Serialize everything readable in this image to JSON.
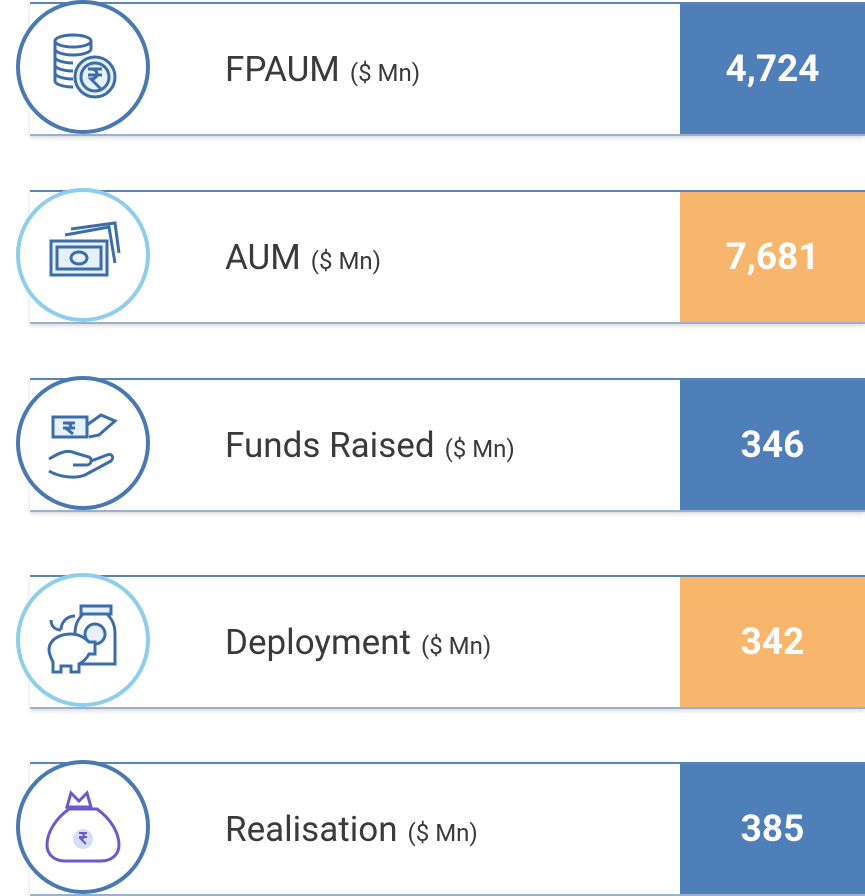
{
  "items": [
    {
      "label": "FPAUM",
      "unit": "($ Mn)",
      "value": "4,724"
    },
    {
      "label": "AUM",
      "unit": "($ Mn)",
      "value": "7,681"
    },
    {
      "label": "Funds Raised",
      "unit": "($ Mn)",
      "value": "346"
    },
    {
      "label": "Deployment",
      "unit": "($ Mn)",
      "value": "342"
    },
    {
      "label": "Realisation",
      "unit": "($ Mn)",
      "value": "385"
    }
  ]
}
